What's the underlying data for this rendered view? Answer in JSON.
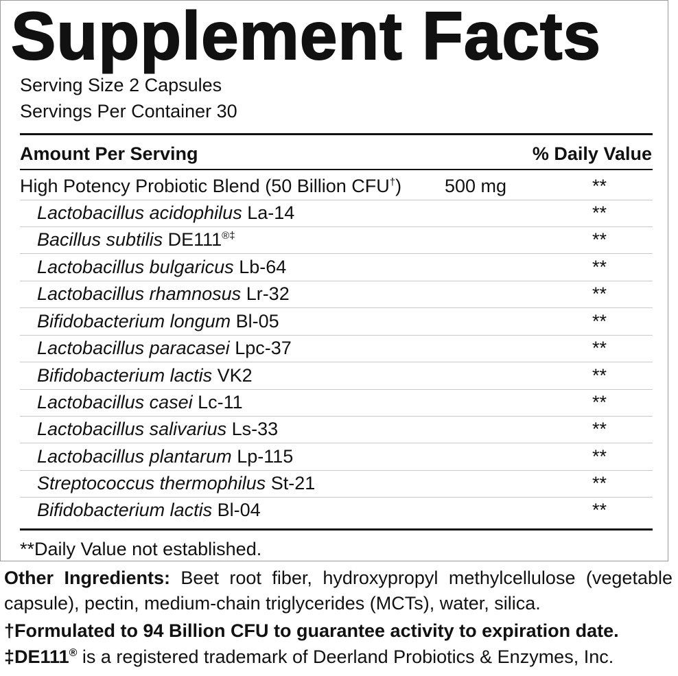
{
  "title": "Supplement Facts",
  "serving": {
    "size": "Serving Size 2 Capsules",
    "per_container": "Servings Per Container 30"
  },
  "header": {
    "amount": "Amount Per Serving",
    "daily_value": "% Daily Value"
  },
  "blend": {
    "name": "High Potency Probiotic Blend",
    "cfu": "(50 Billion CFU",
    "cfu_mark": "†",
    "cfu_close": ")",
    "amount": "500 mg",
    "dv": "**"
  },
  "strains": [
    {
      "species": "Lactobacillus acidophilus",
      "strain": "La-14",
      "mark": "",
      "dv": "**"
    },
    {
      "species": "Bacillus subtilis",
      "strain": "DE111",
      "mark": "®‡",
      "dv": "**"
    },
    {
      "species": "Lactobacillus bulgaricus",
      "strain": "Lb-64",
      "mark": "",
      "dv": "**"
    },
    {
      "species": "Lactobacillus rhamnosus",
      "strain": "Lr-32",
      "mark": "",
      "dv": "**"
    },
    {
      "species": "Bifidobacterium longum",
      "strain": "Bl-05",
      "mark": "",
      "dv": "**"
    },
    {
      "species": "Lactobacillus paracasei",
      "strain": "Lpc-37",
      "mark": "",
      "dv": "**"
    },
    {
      "species": "Bifidobacterium lactis",
      "strain": "VK2",
      "mark": "",
      "dv": "**"
    },
    {
      "species": "Lactobacillus casei",
      "strain": "Lc-11",
      "mark": "",
      "dv": "**"
    },
    {
      "species": "Lactobacillus salivarius",
      "strain": "Ls-33",
      "mark": "",
      "dv": "**"
    },
    {
      "species": "Lactobacillus plantarum",
      "strain": "Lp-115",
      "mark": "",
      "dv": "**"
    },
    {
      "species": "Streptococcus thermophilus",
      "strain": "St-21",
      "mark": "",
      "dv": "**"
    },
    {
      "species": "Bifidobacterium lactis",
      "strain": "Bl-04",
      "mark": "",
      "dv": "**"
    }
  ],
  "footnote": "**Daily Value not established.",
  "other_ingredients": {
    "label": "Other Ingredients:",
    "text": "Beet root fiber, hydroxypropyl methylcellulose (vegetable capsule), pectin, medium-chain triglycerides (MCTs), water, silica."
  },
  "notes": {
    "formulated": "†Formulated to 94 Billion CFU to guarantee activity to expiration date.",
    "trademark_prefix": "‡DE111",
    "trademark_mark": "®",
    "trademark_text": " is a registered trademark of Deerland Probiotics & Enzymes, Inc."
  }
}
